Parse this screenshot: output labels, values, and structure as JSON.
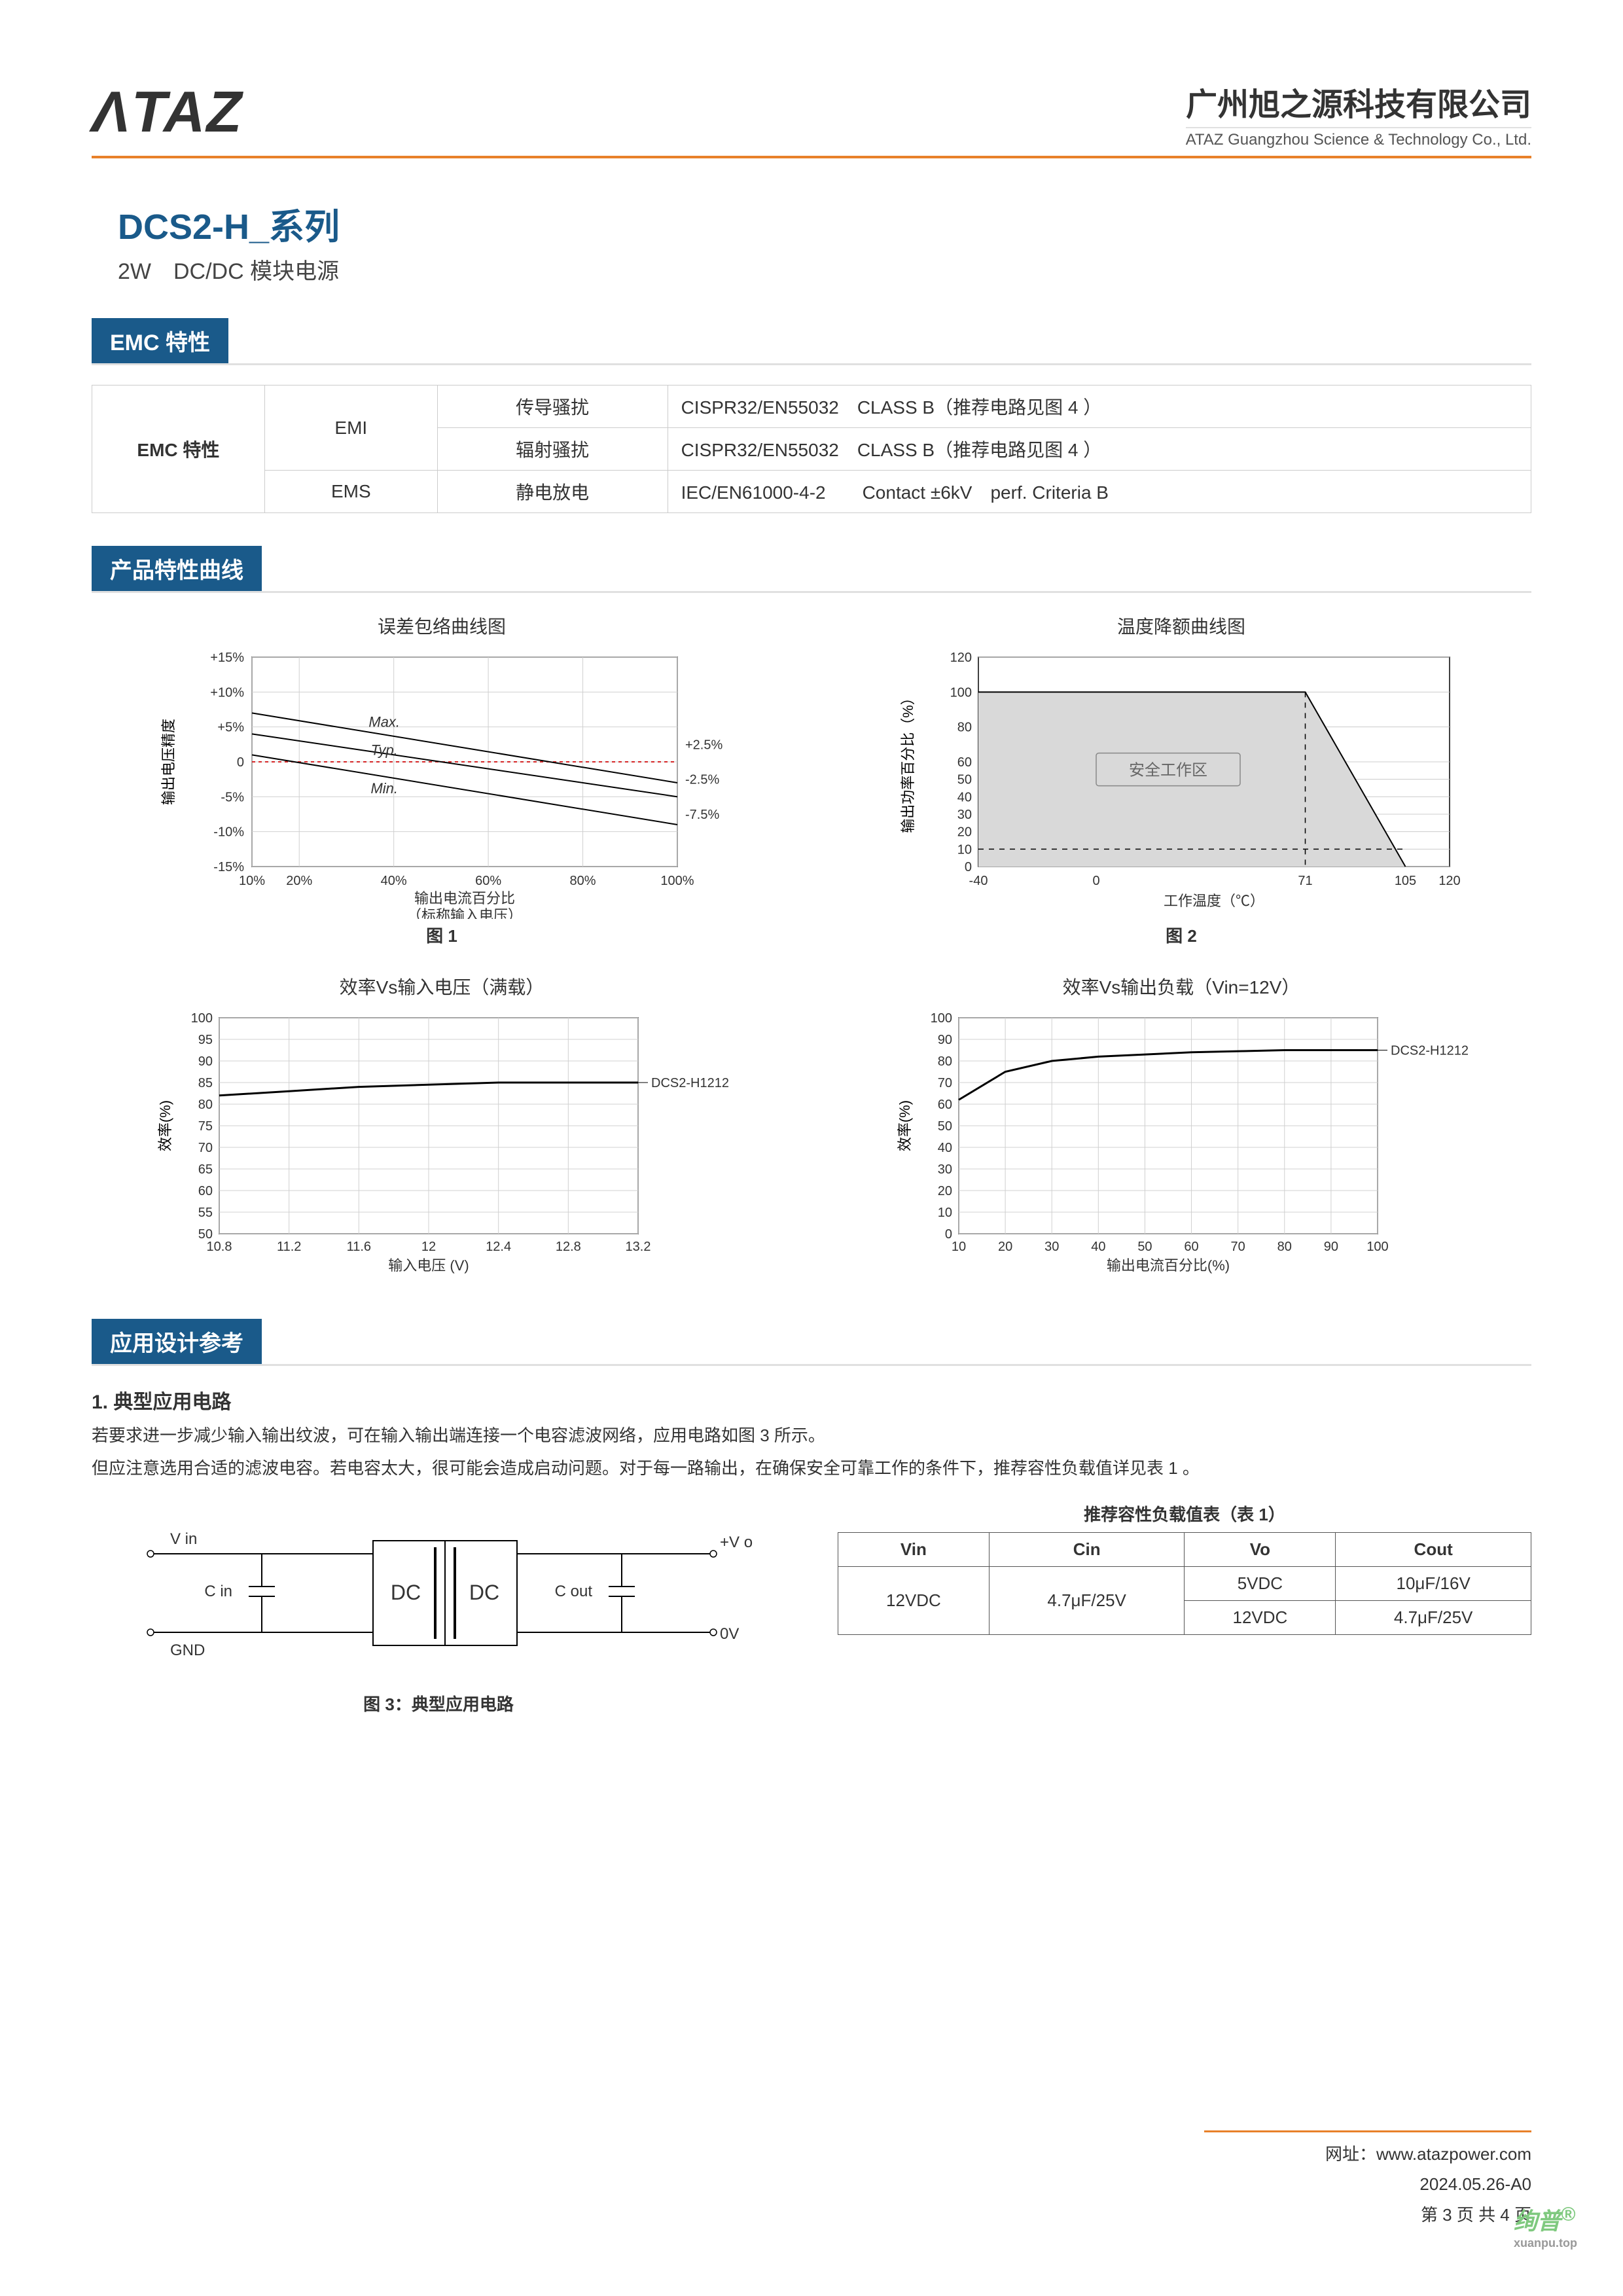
{
  "header": {
    "logo": "ΛTAZ",
    "company_cn": "广州旭之源科技有限公司",
    "company_en": "ATAZ Guangzhou Science & Technology Co., Ltd."
  },
  "product": {
    "title": "DCS2-H_系列",
    "subtitle": "2W　DC/DC 模块电源"
  },
  "sections": {
    "emc": "EMC 特性",
    "curves": "产品特性曲线",
    "app": "应用设计参考"
  },
  "emc_table": {
    "row_label": "EMC 特性",
    "emi": "EMI",
    "ems": "EMS",
    "conducted": "传导骚扰",
    "radiated": "辐射骚扰",
    "esd": "静电放电",
    "conducted_spec": "CISPR32/EN55032　CLASS B（推荐电路见图 4 ）",
    "radiated_spec": "CISPR32/EN55032　CLASS B（推荐电路见图 4 ）",
    "esd_spec": "IEC/EN61000-4-2　　Contact  ±6kV　perf. Criteria B"
  },
  "chart1": {
    "type": "line",
    "title": "误差包络曲线图",
    "caption": "图 1",
    "xlabel": "输出电流百分比\n（标称输入电压）",
    "ylabel": "输出电压精度",
    "xticks": [
      "10%",
      "20%",
      "40%",
      "60%",
      "80%",
      "100%"
    ],
    "yticks_left": [
      "+15%",
      "+10%",
      "+5%",
      "0",
      "-5%",
      "-10%",
      "-15%"
    ],
    "yticks_right": [
      "+2.5%",
      "-2.5%",
      "-7.5%"
    ],
    "lines": {
      "max": {
        "label": "Max.",
        "x": [
          10,
          100
        ],
        "y": [
          7,
          -3
        ],
        "color": "#000000",
        "width": 2
      },
      "typ": {
        "label": "Typ.",
        "x": [
          10,
          100
        ],
        "y": [
          4,
          -5
        ],
        "color": "#000000",
        "width": 2
      },
      "min": {
        "label": "Min.",
        "x": [
          10,
          100
        ],
        "y": [
          1,
          -9
        ],
        "color": "#000000",
        "width": 2
      },
      "zero": {
        "x": [
          10,
          100
        ],
        "y": [
          0,
          0
        ],
        "color": "#d62728",
        "dash": "5,5",
        "width": 2
      }
    },
    "grid_color": "#d0d0d0",
    "bg": "#ffffff"
  },
  "chart2": {
    "type": "area-line",
    "title": "温度降额曲线图",
    "caption": "图 2",
    "xlabel": "工作温度（℃）",
    "ylabel": "输出功率百分比（%）",
    "xticks": [
      "-40",
      "0",
      "71",
      "105",
      "120"
    ],
    "yticks": [
      "0",
      "10",
      "20",
      "30",
      "40",
      "50",
      "60",
      "80",
      "100",
      "120"
    ],
    "safe_zone_label": "安全工作区",
    "safe_fill": "#d9d9d9",
    "line": {
      "x": [
        -40,
        71,
        105
      ],
      "y": [
        100,
        100,
        0
      ],
      "color": "#000000",
      "width": 2
    },
    "dash": {
      "x": [
        -40,
        105
      ],
      "y": [
        10,
        10
      ],
      "color": "#000",
      "dash": "6,6"
    },
    "grid_color": "#cccccc",
    "bg": "#ffffff"
  },
  "chart3": {
    "type": "line",
    "title": "效率Vs输入电压（满载）",
    "xlabel": "输入电压 (V)",
    "ylabel": "效率(%)",
    "xticks": [
      "10.8",
      "11.2",
      "11.6",
      "12",
      "12.4",
      "12.8",
      "13.2"
    ],
    "yticks": [
      "50",
      "55",
      "60",
      "65",
      "70",
      "75",
      "80",
      "85",
      "90",
      "95",
      "100"
    ],
    "series_label": "DCS2-H1212",
    "data": {
      "x": [
        10.8,
        11.2,
        11.6,
        12,
        12.4,
        12.8,
        13.2
      ],
      "y": [
        82,
        83,
        84,
        84.5,
        85,
        85,
        85
      ]
    },
    "line_color": "#000000",
    "line_width": 3,
    "grid_color": "#d0d0d0",
    "bg": "#ffffff"
  },
  "chart4": {
    "type": "line",
    "title": "效率Vs输出负载（Vin=12V）",
    "xlabel": "输出电流百分比(%)",
    "ylabel": "效率(%)",
    "xticks": [
      "10",
      "20",
      "30",
      "40",
      "50",
      "60",
      "70",
      "80",
      "90",
      "100"
    ],
    "yticks": [
      "0",
      "10",
      "20",
      "30",
      "40",
      "50",
      "60",
      "70",
      "80",
      "90",
      "100"
    ],
    "series_label": "DCS2-H1212",
    "data": {
      "x": [
        10,
        20,
        30,
        40,
        50,
        60,
        70,
        80,
        90,
        100
      ],
      "y": [
        62,
        75,
        80,
        82,
        83,
        84,
        84.5,
        85,
        85,
        85
      ]
    },
    "line_color": "#000000",
    "line_width": 3,
    "grid_color": "#d0d0d0",
    "bg": "#ffffff"
  },
  "application": {
    "heading": "1. 典型应用电路",
    "para1": "若要求进一步减少输入输出纹波，可在输入输出端连接一个电容滤波网络，应用电路如图 3 所示。",
    "para2": "但应注意选用合适的滤波电容。若电容太大，很可能会造成启动问题。对于每一路输出，在确保安全可靠工作的条件下，推荐容性负载值详见表 1 。",
    "circuit_labels": {
      "vin": "V in",
      "gnd": "GND",
      "cin": "C in",
      "dc1": "DC",
      "dc2": "DC",
      "cout": "C out",
      "vo": "+V o",
      "ov": "0V"
    },
    "circuit_caption": "图 3：典型应用电路",
    "rec_caption": "推荐容性负载值表（表 1）",
    "rec_headers": [
      "Vin",
      "Cin",
      "Vo",
      "Cout"
    ],
    "rec_rows": [
      {
        "vin": "12VDC",
        "cin": "4.7μF/25V",
        "vo": "5VDC",
        "cout": "10μF/16V"
      },
      {
        "vo": "12VDC",
        "cout": "4.7μF/25V"
      }
    ]
  },
  "footer": {
    "url_label": "网址：",
    "url": "www.atazpower.com",
    "date": "2024.05.26-A0",
    "page": "第 3 页 共 4 页"
  },
  "watermark": {
    "main": "绚普",
    "sup": "®",
    "sub": "xuanpu.top"
  },
  "colors": {
    "brand_orange": "#e8812a",
    "brand_blue": "#1a5a8a",
    "text": "#333333",
    "grid": "#d0d0d0"
  }
}
